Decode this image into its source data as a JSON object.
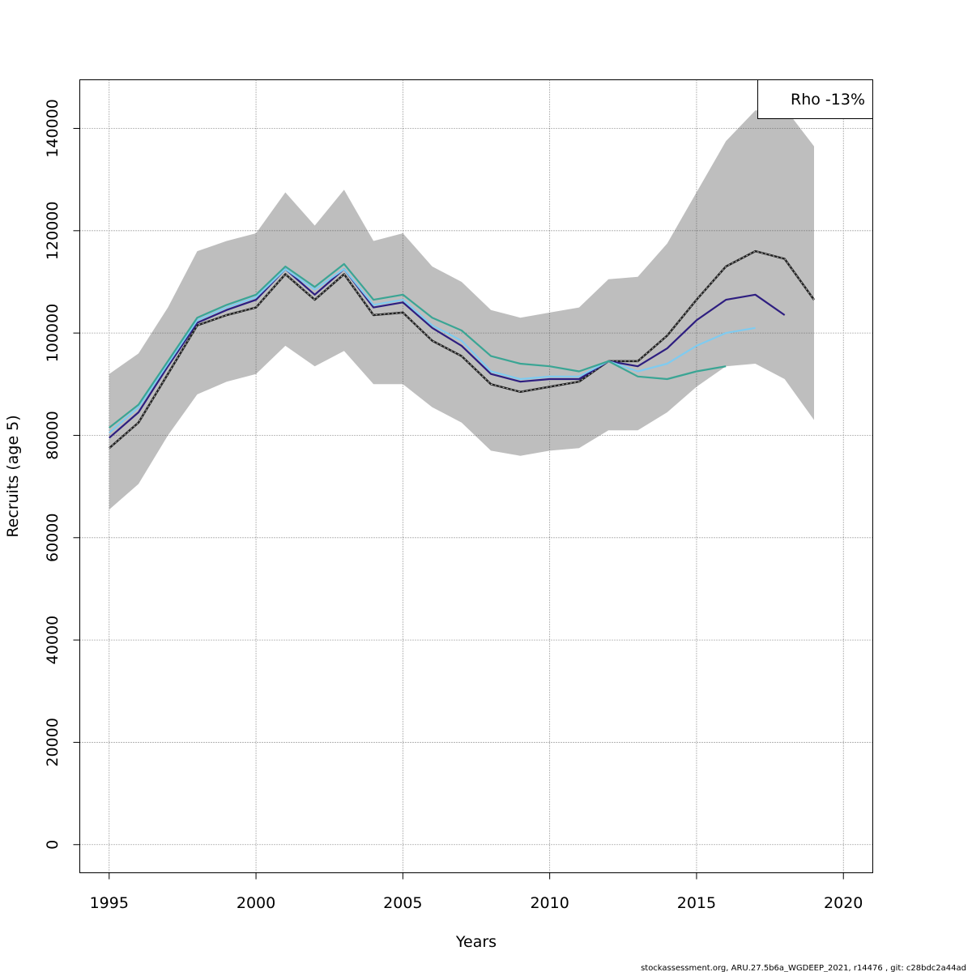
{
  "chart_data": {
    "type": "line",
    "xlabel": "Years",
    "ylabel": "Recruits (age 5)",
    "xlim": [
      1994,
      2021
    ],
    "ylim": [
      -5500,
      149500
    ],
    "xticks": [
      1995,
      2000,
      2005,
      2010,
      2015,
      2020
    ],
    "yticks": [
      0,
      20000,
      40000,
      60000,
      80000,
      100000,
      120000,
      140000
    ],
    "x_tick_labels": [
      "1995",
      "2000",
      "2005",
      "2010",
      "2015",
      "2020"
    ],
    "y_tick_labels": [
      "0",
      "20000",
      "40000",
      "60000",
      "80000",
      "100000",
      "120000",
      "140000"
    ],
    "grid": true,
    "legend": {
      "placement": "top-right",
      "text": "Rho -13%"
    },
    "confidence_band": {
      "color": "#bebebe",
      "x": [
        1995,
        1996,
        1997,
        1998,
        1999,
        2000,
        2001,
        2002,
        2003,
        2004,
        2005,
        2006,
        2007,
        2008,
        2009,
        2010,
        2011,
        2012,
        2013,
        2014,
        2015,
        2016,
        2017,
        2018,
        2019
      ],
      "upper": [
        92000,
        96000,
        105000,
        116000,
        118000,
        119500,
        127500,
        121000,
        128000,
        118000,
        119500,
        113000,
        110000,
        104500,
        103000,
        104000,
        105000,
        110500,
        111000,
        117500,
        127500,
        137500,
        143500,
        144000,
        136500
      ],
      "lower": [
        65500,
        70500,
        80000,
        88000,
        90500,
        92000,
        97500,
        93500,
        96500,
        90000,
        90000,
        85500,
        82500,
        77000,
        76000,
        77000,
        77500,
        81000,
        81000,
        84500,
        89500,
        93500,
        94000,
        91000,
        83000
      ]
    },
    "series": [
      {
        "color": "#222222",
        "dashed": true,
        "x": [
          1995,
          1996,
          1997,
          1998,
          1999,
          2000,
          2001,
          2002,
          2003,
          2004,
          2005,
          2006,
          2007,
          2008,
          2009,
          2010,
          2011,
          2012,
          2013,
          2014,
          2015,
          2016,
          2017,
          2018,
          2019
        ],
        "values": [
          77500,
          82500,
          92000,
          101500,
          103500,
          105000,
          111500,
          106500,
          111500,
          103500,
          104000,
          98500,
          95500,
          90000,
          88500,
          89500,
          90500,
          94500,
          94500,
          99500,
          106500,
          113000,
          116000,
          114500,
          106500
        ]
      },
      {
        "color": "#2e1e80",
        "x": [
          1995,
          1996,
          1997,
          1998,
          1999,
          2000,
          2001,
          2002,
          2003,
          2004,
          2005,
          2006,
          2007,
          2008,
          2009,
          2010,
          2011,
          2012,
          2013,
          2014,
          2015,
          2016,
          2017,
          2018
        ],
        "values": [
          79500,
          84500,
          93500,
          102000,
          104500,
          106500,
          112500,
          107500,
          112500,
          105000,
          106000,
          101000,
          97500,
          92000,
          90500,
          91000,
          91000,
          94500,
          93500,
          97000,
          102500,
          106500,
          107500,
          103500
        ]
      },
      {
        "color": "#7fcbf0",
        "x": [
          1995,
          1996,
          1997,
          1998,
          1999,
          2000,
          2001,
          2002,
          2003,
          2004,
          2005,
          2006,
          2007,
          2008,
          2009,
          2010,
          2011,
          2012,
          2013,
          2014,
          2015,
          2016,
          2017
        ],
        "values": [
          80500,
          85500,
          94000,
          102500,
          105000,
          107000,
          112500,
          108500,
          112500,
          105500,
          106500,
          101500,
          98500,
          92500,
          91000,
          91500,
          91500,
          94500,
          92500,
          94000,
          97500,
          100000,
          101000
        ]
      },
      {
        "color": "#3aa594",
        "x": [
          1995,
          1996,
          1997,
          1998,
          1999,
          2000,
          2001,
          2002,
          2003,
          2004,
          2005,
          2006,
          2007,
          2008,
          2009,
          2010,
          2011,
          2012,
          2013,
          2014,
          2015,
          2016
        ],
        "values": [
          81500,
          86000,
          94500,
          103000,
          105500,
          107500,
          113000,
          109000,
          113500,
          106500,
          107500,
          103000,
          100500,
          95500,
          94000,
          93500,
          92500,
          94500,
          91500,
          91000,
          92500,
          93500
        ]
      }
    ]
  },
  "footer": "stockassessment.org, ARU.27.5b6a_WGDEEP_2021, r14476 , git: c28bdc2a44ad"
}
